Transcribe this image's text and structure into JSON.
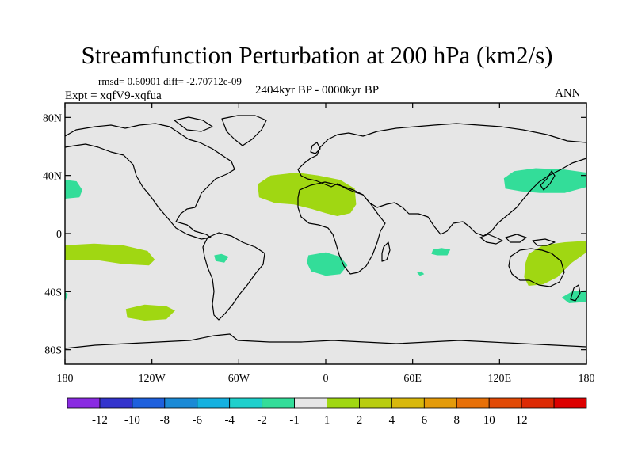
{
  "title": "Streamfunction Perturbation at 200 hPa (km2/s)",
  "stats_line": "rmsd= 0.60901 diff= -2.70712e-09",
  "experiment": "Expt = xqfV9-xqfua",
  "period": "2404kyr BP - 0000kyr BP",
  "season": "ANN",
  "map": {
    "projection": "cylindrical equidistant",
    "lon_range": [
      -180,
      180
    ],
    "lat_range": [
      -90,
      90
    ],
    "land_color": "#e6e6e6",
    "y_ticks": [
      {
        "label": "80N",
        "lat": 80
      },
      {
        "label": "40N",
        "lat": 40
      },
      {
        "label": "0",
        "lat": 0
      },
      {
        "label": "40S",
        "lat": -40
      },
      {
        "label": "80S",
        "lat": -80
      }
    ],
    "x_ticks": [
      {
        "label": "180",
        "lon": -180
      },
      {
        "label": "120W",
        "lon": -120
      },
      {
        "label": "60W",
        "lon": -60
      },
      {
        "label": "0",
        "lon": 0
      },
      {
        "label": "60E",
        "lon": 60
      },
      {
        "label": "120E",
        "lon": 120
      },
      {
        "label": "180",
        "lon": 180
      }
    ],
    "anomalies": [
      {
        "name": "north-pacific-east",
        "range": "-2 to -1",
        "color": "#33dd99",
        "points": [
          [
            -180,
            37
          ],
          [
            -172,
            36
          ],
          [
            -168,
            30
          ],
          [
            -170,
            25
          ],
          [
            -180,
            24
          ]
        ]
      },
      {
        "name": "north-atlantic-west-africa",
        "range": "1 to 2",
        "color": "#a0d712",
        "points": [
          [
            -47,
            34
          ],
          [
            -38,
            40
          ],
          [
            -20,
            42
          ],
          [
            -5,
            40
          ],
          [
            10,
            37
          ],
          [
            20,
            31
          ],
          [
            21,
            20
          ],
          [
            17,
            14
          ],
          [
            8,
            12
          ],
          [
            0,
            14
          ],
          [
            -10,
            17
          ],
          [
            -22,
            20
          ],
          [
            -35,
            21
          ],
          [
            -46,
            25
          ]
        ]
      },
      {
        "name": "south-pacific-east",
        "range": "1 to 2",
        "color": "#a0d712",
        "points": [
          [
            -180,
            -8
          ],
          [
            -160,
            -7
          ],
          [
            -140,
            -8
          ],
          [
            -123,
            -12
          ],
          [
            -118,
            -18
          ],
          [
            -122,
            -22
          ],
          [
            -140,
            -21
          ],
          [
            -160,
            -18
          ],
          [
            -180,
            -18
          ]
        ]
      },
      {
        "name": "south-america-small",
        "range": "-2 to -1",
        "color": "#33dd99",
        "points": [
          [
            -77,
            -15
          ],
          [
            -72,
            -14
          ],
          [
            -67,
            -16
          ],
          [
            -70,
            -20
          ],
          [
            -76,
            -19
          ]
        ]
      },
      {
        "name": "south-atlantic",
        "range": "-2 to -1",
        "color": "#33dd99",
        "points": [
          [
            -12,
            -15
          ],
          [
            0,
            -13
          ],
          [
            10,
            -16
          ],
          [
            15,
            -22
          ],
          [
            10,
            -28
          ],
          [
            0,
            -29
          ],
          [
            -10,
            -26
          ],
          [
            -13,
            -20
          ]
        ]
      },
      {
        "name": "indian-ocean-small",
        "range": "-2 to -1",
        "color": "#33dd99",
        "points": [
          [
            74,
            -11
          ],
          [
            80,
            -10
          ],
          [
            86,
            -11
          ],
          [
            84,
            -15
          ],
          [
            77,
            -15
          ],
          [
            73,
            -14
          ]
        ]
      },
      {
        "name": "south-indian-tiny",
        "range": "-2 to -1",
        "color": "#33dd99",
        "points": [
          [
            63,
            -27
          ],
          [
            66,
            -26
          ],
          [
            68,
            -28
          ],
          [
            65,
            -29
          ]
        ]
      },
      {
        "name": "north-pacific-west",
        "range": "-2 to -1",
        "color": "#33dd99",
        "points": [
          [
            123,
            38
          ],
          [
            130,
            43
          ],
          [
            145,
            45
          ],
          [
            165,
            44
          ],
          [
            180,
            42
          ],
          [
            180,
            32
          ],
          [
            165,
            28
          ],
          [
            148,
            28
          ],
          [
            135,
            29
          ],
          [
            124,
            31
          ]
        ]
      },
      {
        "name": "australia-west-pacific",
        "range": "1 to 2",
        "color": "#a0d712",
        "points": [
          [
            140,
            -14
          ],
          [
            150,
            -8
          ],
          [
            165,
            -6
          ],
          [
            180,
            -5
          ],
          [
            180,
            -13
          ],
          [
            170,
            -20
          ],
          [
            160,
            -30
          ],
          [
            150,
            -35
          ],
          [
            140,
            -36
          ],
          [
            137,
            -30
          ],
          [
            138,
            -20
          ]
        ]
      },
      {
        "name": "south-indian-east",
        "range": "-2 to -1",
        "color": "#33dd99",
        "points": [
          [
            -180,
            -40
          ],
          [
            -178,
            -42
          ],
          [
            -180,
            -47
          ]
        ]
      },
      {
        "name": "south-pacific-west",
        "range": "-2 to -1",
        "color": "#33dd99",
        "points": [
          [
            180,
            -39
          ],
          [
            170,
            -40
          ],
          [
            163,
            -44
          ],
          [
            168,
            -48
          ],
          [
            180,
            -47
          ]
        ]
      },
      {
        "name": "southern-ocean-pacific",
        "range": "1 to 2",
        "color": "#a0d712",
        "points": [
          [
            -138,
            -52
          ],
          [
            -125,
            -49
          ],
          [
            -110,
            -50
          ],
          [
            -104,
            -53
          ],
          [
            -110,
            -59
          ],
          [
            -125,
            -60
          ],
          [
            -137,
            -58
          ]
        ]
      }
    ]
  },
  "colorbar": {
    "colors": [
      "#8a2be2",
      "#3333cc",
      "#1e60dd",
      "#1b8ad6",
      "#15b1e0",
      "#1ed0cc",
      "#33dd99",
      "#e6e6e6",
      "#a0d712",
      "#b9cd10",
      "#d8b80c",
      "#e49b0a",
      "#e77008",
      "#e24a06",
      "#dd2a04",
      "#dd0000"
    ],
    "labels": [
      "-12",
      "-10",
      "-8",
      "-6",
      "-4",
      "-2",
      "-1",
      "1",
      "2",
      "4",
      "6",
      "8",
      "10",
      "12"
    ]
  }
}
